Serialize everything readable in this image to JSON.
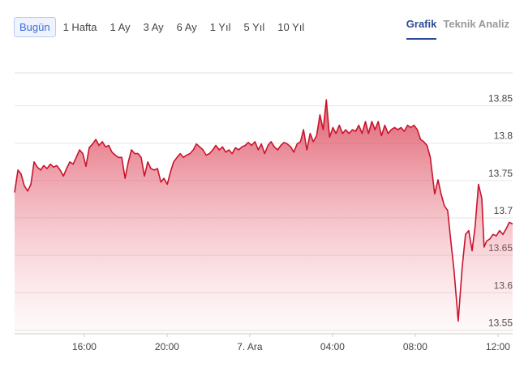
{
  "tabs": [
    "Bugün",
    "1 Hafta",
    "1 Ay",
    "3 Ay",
    "6 Ay",
    "1 Yıl",
    "5 Yıl",
    "10 Yıl"
  ],
  "views": [
    "Grafik",
    "Teknik Analiz"
  ],
  "chart_data": {
    "type": "line",
    "color": "#c8142c",
    "grid": true,
    "xlim": [
      12.63,
      36.71
    ],
    "ylim": [
      13.545,
      13.894
    ],
    "xticks": [
      {
        "value": 16,
        "label": "16:00"
      },
      {
        "value": 20,
        "label": "20:00"
      },
      {
        "value": 24,
        "label": "7. Ara"
      },
      {
        "value": 28,
        "label": "04:00"
      },
      {
        "value": 32,
        "label": "08:00"
      },
      {
        "value": 36,
        "label": "12:00"
      }
    ],
    "yticks": [
      13.55,
      13.6,
      13.65,
      13.7,
      13.75,
      13.8,
      13.85
    ],
    "x": [
      12.63,
      12.79,
      12.94,
      13.1,
      13.26,
      13.42,
      13.57,
      13.73,
      13.89,
      14.04,
      14.2,
      14.36,
      14.51,
      14.67,
      14.83,
      14.99,
      15.14,
      15.3,
      15.46,
      15.61,
      15.77,
      15.93,
      16.08,
      16.24,
      16.4,
      16.56,
      16.71,
      16.87,
      17.03,
      17.18,
      17.34,
      17.5,
      17.65,
      17.81,
      17.97,
      18.13,
      18.28,
      18.44,
      18.6,
      18.75,
      18.91,
      19.07,
      19.22,
      19.38,
      19.54,
      19.7,
      19.85,
      20.01,
      20.17,
      20.32,
      20.48,
      20.64,
      20.79,
      20.95,
      21.11,
      21.27,
      21.42,
      21.58,
      21.74,
      21.89,
      22.05,
      22.21,
      22.36,
      22.52,
      22.68,
      22.84,
      22.99,
      23.15,
      23.31,
      23.46,
      23.62,
      23.78,
      23.93,
      24.09,
      24.25,
      24.41,
      24.56,
      24.72,
      24.88,
      25.03,
      25.19,
      25.35,
      25.5,
      25.66,
      25.82,
      25.98,
      26.13,
      26.29,
      26.45,
      26.6,
      26.76,
      26.92,
      27.07,
      27.23,
      27.39,
      27.55,
      27.7,
      27.86,
      28.02,
      28.17,
      28.33,
      28.49,
      28.64,
      28.8,
      28.96,
      29.12,
      29.27,
      29.43,
      29.59,
      29.74,
      29.9,
      30.06,
      30.21,
      30.37,
      30.53,
      30.69,
      30.84,
      31.0,
      31.16,
      31.31,
      31.47,
      31.63,
      31.78,
      31.94,
      32.1,
      32.26,
      32.41,
      32.57,
      32.73,
      32.94,
      33.1,
      33.25,
      33.41,
      33.57,
      33.73,
      33.88,
      34.08,
      34.27,
      34.43,
      34.59,
      34.75,
      34.9,
      35.06,
      35.22,
      35.33,
      35.45,
      35.61,
      35.76,
      35.92,
      36.08,
      36.24,
      36.39,
      36.55,
      36.71
    ],
    "values": [
      13.734,
      13.764,
      13.759,
      13.743,
      13.736,
      13.745,
      13.775,
      13.768,
      13.764,
      13.77,
      13.766,
      13.772,
      13.768,
      13.77,
      13.764,
      13.756,
      13.766,
      13.775,
      13.772,
      13.781,
      13.791,
      13.786,
      13.769,
      13.794,
      13.799,
      13.805,
      13.797,
      13.802,
      13.795,
      13.797,
      13.788,
      13.784,
      13.781,
      13.781,
      13.753,
      13.775,
      13.791,
      13.786,
      13.786,
      13.781,
      13.756,
      13.775,
      13.766,
      13.764,
      13.766,
      13.748,
      13.753,
      13.745,
      13.762,
      13.775,
      13.781,
      13.786,
      13.781,
      13.784,
      13.786,
      13.791,
      13.799,
      13.795,
      13.791,
      13.784,
      13.786,
      13.791,
      13.797,
      13.791,
      13.795,
      13.788,
      13.791,
      13.786,
      13.794,
      13.791,
      13.795,
      13.797,
      13.801,
      13.797,
      13.802,
      13.791,
      13.799,
      13.786,
      13.797,
      13.802,
      13.795,
      13.791,
      13.797,
      13.801,
      13.799,
      13.795,
      13.788,
      13.799,
      13.802,
      13.818,
      13.791,
      13.813,
      13.802,
      13.81,
      13.838,
      13.818,
      13.858,
      13.808,
      13.821,
      13.813,
      13.824,
      13.813,
      13.818,
      13.813,
      13.818,
      13.816,
      13.824,
      13.813,
      13.829,
      13.813,
      13.829,
      13.818,
      13.829,
      13.81,
      13.824,
      13.813,
      13.818,
      13.821,
      13.818,
      13.821,
      13.816,
      13.824,
      13.821,
      13.824,
      13.818,
      13.805,
      13.802,
      13.797,
      13.781,
      13.732,
      13.751,
      13.732,
      13.716,
      13.71,
      13.667,
      13.629,
      13.562,
      13.634,
      13.678,
      13.683,
      13.656,
      13.689,
      13.745,
      13.726,
      13.661,
      13.669,
      13.672,
      13.678,
      13.676,
      13.683,
      13.678,
      13.685,
      13.694,
      13.692
    ]
  }
}
